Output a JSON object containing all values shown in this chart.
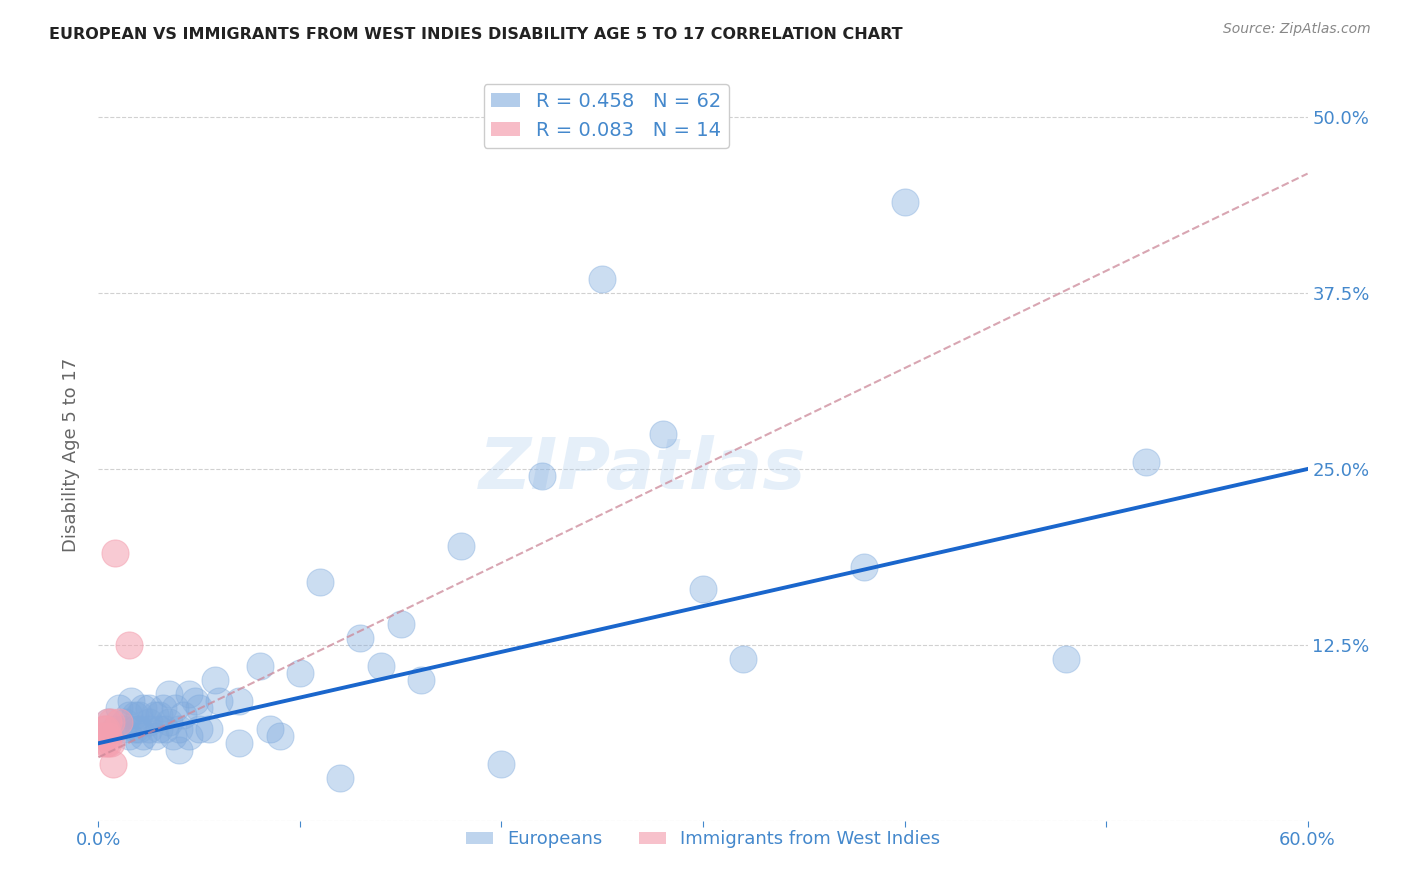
{
  "title": "EUROPEAN VS IMMIGRANTS FROM WEST INDIES DISABILITY AGE 5 TO 17 CORRELATION CHART",
  "source": "Source: ZipAtlas.com",
  "ylabel": "Disability Age 5 to 17",
  "xlim": [
    0.0,
    0.6
  ],
  "ylim": [
    0.0,
    0.52
  ],
  "yticks": [
    0.0,
    0.125,
    0.25,
    0.375,
    0.5
  ],
  "ytick_labels": [
    "",
    "12.5%",
    "25.0%",
    "37.5%",
    "50.0%"
  ],
  "xticks": [
    0.0,
    0.1,
    0.2,
    0.3,
    0.4,
    0.5,
    0.6
  ],
  "xtick_labels": [
    "0.0%",
    "",
    "",
    "",
    "",
    "",
    "60.0%"
  ],
  "legend_r_blue": "R = 0.458",
  "legend_n_blue": "N = 62",
  "legend_r_pink": "R = 0.083",
  "legend_n_pink": "N = 14",
  "blue_color": "#7faadd",
  "pink_color": "#f4a0b0",
  "trend_blue": "#1a66cc",
  "trend_pink": "#cc8899",
  "watermark": "ZIPatlas",
  "blue_scatter_x": [
    0.005,
    0.008,
    0.01,
    0.012,
    0.013,
    0.015,
    0.015,
    0.016,
    0.018,
    0.018,
    0.02,
    0.02,
    0.02,
    0.022,
    0.022,
    0.025,
    0.025,
    0.025,
    0.028,
    0.028,
    0.03,
    0.03,
    0.032,
    0.033,
    0.035,
    0.035,
    0.037,
    0.038,
    0.04,
    0.04,
    0.042,
    0.045,
    0.045,
    0.048,
    0.05,
    0.05,
    0.055,
    0.058,
    0.06,
    0.07,
    0.07,
    0.08,
    0.085,
    0.09,
    0.1,
    0.11,
    0.12,
    0.13,
    0.14,
    0.15,
    0.16,
    0.18,
    0.2,
    0.22,
    0.25,
    0.28,
    0.3,
    0.32,
    0.38,
    0.4,
    0.48,
    0.52
  ],
  "blue_scatter_y": [
    0.07,
    0.065,
    0.08,
    0.065,
    0.07,
    0.06,
    0.075,
    0.085,
    0.065,
    0.075,
    0.055,
    0.065,
    0.075,
    0.06,
    0.08,
    0.065,
    0.07,
    0.08,
    0.06,
    0.075,
    0.065,
    0.075,
    0.08,
    0.065,
    0.07,
    0.09,
    0.06,
    0.08,
    0.05,
    0.065,
    0.075,
    0.06,
    0.09,
    0.085,
    0.065,
    0.08,
    0.065,
    0.1,
    0.085,
    0.055,
    0.085,
    0.11,
    0.065,
    0.06,
    0.105,
    0.17,
    0.03,
    0.13,
    0.11,
    0.14,
    0.1,
    0.195,
    0.04,
    0.245,
    0.385,
    0.275,
    0.165,
    0.115,
    0.18,
    0.44,
    0.115,
    0.255
  ],
  "pink_scatter_x": [
    0.002,
    0.003,
    0.003,
    0.004,
    0.004,
    0.005,
    0.005,
    0.005,
    0.006,
    0.006,
    0.007,
    0.008,
    0.01,
    0.015
  ],
  "pink_scatter_y": [
    0.055,
    0.06,
    0.065,
    0.055,
    0.065,
    0.055,
    0.06,
    0.07,
    0.055,
    0.07,
    0.04,
    0.19,
    0.07,
    0.125
  ],
  "blue_trend_x": [
    0.0,
    0.6
  ],
  "blue_trend_y": [
    0.055,
    0.25
  ],
  "pink_trend_x": [
    0.0,
    0.6
  ],
  "pink_trend_y": [
    0.045,
    0.46
  ],
  "background_color": "#ffffff",
  "title_color": "#333333",
  "axis_color": "#4488cc",
  "grid_color": "#cccccc"
}
